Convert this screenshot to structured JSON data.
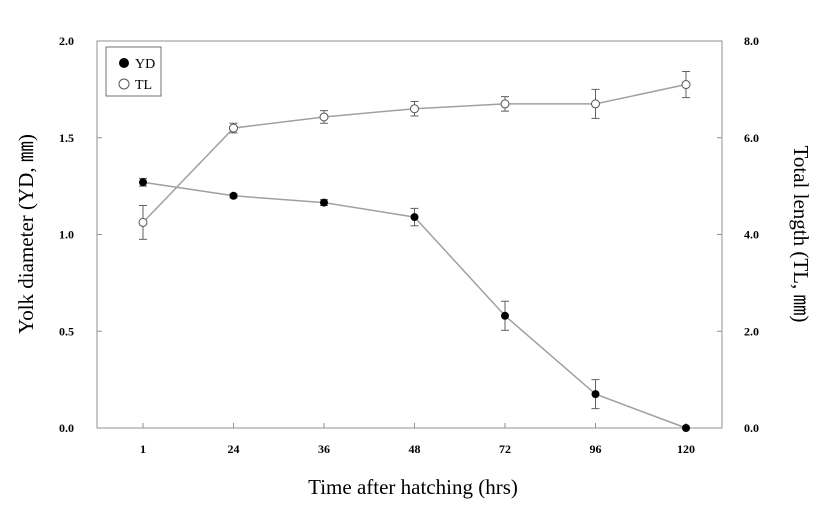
{
  "chart_data": {
    "type": "line",
    "categories": [
      "1",
      "24",
      "36",
      "48",
      "72",
      "96",
      "120"
    ],
    "xlabel": "Time after hatching  (hrs)",
    "ylabel_left": "Yolk diameter (YD, ㎜)",
    "ylabel_right": "Total length (TL, ㎜)",
    "ylim_left": [
      0,
      2.0
    ],
    "ylim_right": [
      0,
      8.0
    ],
    "yticks_left": [
      "0.0",
      "0.5",
      "1.0",
      "1.5",
      "2.0"
    ],
    "yticks_right": [
      "0.0",
      "2.0",
      "4.0",
      "6.0",
      "8.0"
    ],
    "grid": false,
    "legend_position": "top-left",
    "series": [
      {
        "name": "YD",
        "axis": "left",
        "marker": "filled-circle",
        "values": [
          1.27,
          1.2,
          1.165,
          1.09,
          0.58,
          0.175,
          0.0
        ],
        "errors": [
          0.02,
          0.01,
          0.015,
          0.045,
          0.075,
          0.075,
          0.0
        ]
      },
      {
        "name": "TL",
        "axis": "right",
        "marker": "open-circle",
        "values": [
          4.25,
          6.2,
          6.43,
          6.6,
          6.7,
          6.7,
          7.1
        ],
        "errors": [
          0.35,
          0.1,
          0.13,
          0.15,
          0.15,
          0.3,
          0.27
        ]
      }
    ],
    "colors": {
      "line": "#a0a0a0",
      "axis": "#909090",
      "marker": "#000000",
      "errorbar": "#606060"
    }
  }
}
